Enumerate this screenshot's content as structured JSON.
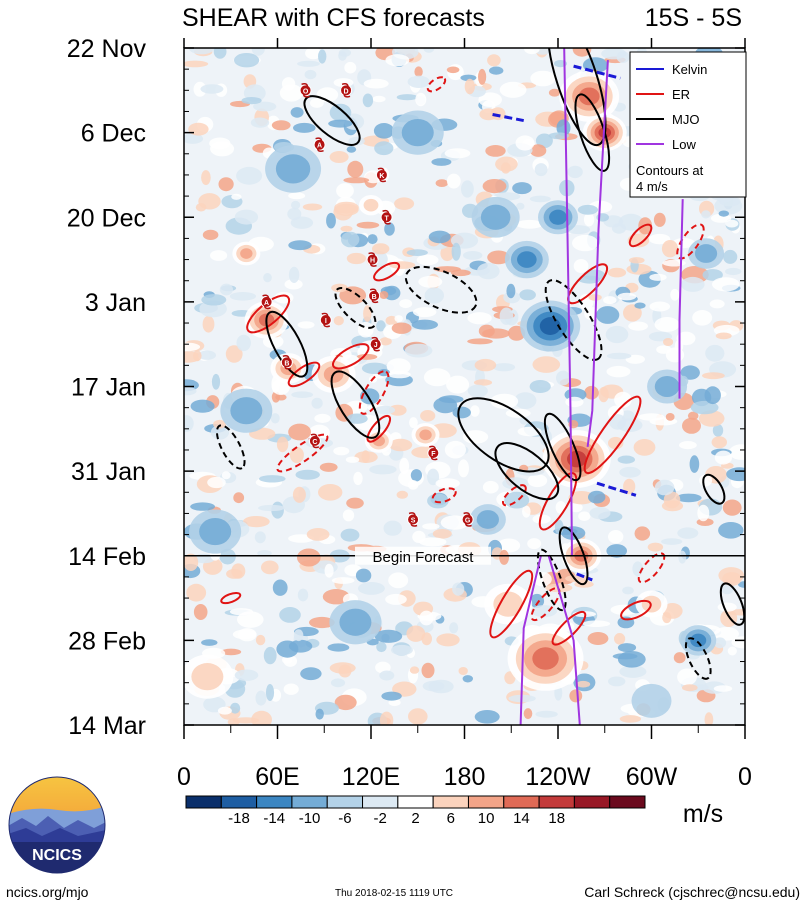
{
  "chart_data": {
    "type": "heatmap",
    "title_left": "SHEAR with CFS forecasts",
    "title_right": "15S - 5S",
    "x_ticks": [
      "0",
      "60E",
      "120E",
      "180",
      "120W",
      "60W",
      "0"
    ],
    "y_ticks": [
      "22 Nov",
      "6 Dec",
      "20 Dec",
      "3 Jan",
      "17 Jan",
      "31 Jan",
      "14 Feb",
      "28 Feb",
      "14 Mar"
    ],
    "xlim": [
      0,
      360
    ],
    "ylim_days": [
      0,
      112
    ],
    "forecast_start_day": 84,
    "forecast_label": "Begin Forecast",
    "legend": [
      {
        "name": "Kelvin",
        "color": "#1a1ad6"
      },
      {
        "name": "ER",
        "color": "#e01414"
      },
      {
        "name": "MJO",
        "color": "#000000"
      },
      {
        "name": "Low",
        "color": "#a035e0"
      }
    ],
    "contour_note_line1": "Contours at",
    "contour_note_line2": "4 m/s",
    "colorbar": {
      "ticks": [
        "-18",
        "-14",
        "-10",
        "-6",
        "-2",
        "2",
        "6",
        "10",
        "14",
        "18"
      ],
      "colors": [
        "#0a2f6b",
        "#1e5ea3",
        "#3b86c2",
        "#74acd6",
        "#b3d2e8",
        "#dce9f3",
        "#ffffff",
        "#fbd3bd",
        "#f3a488",
        "#e06a56",
        "#c33a3a",
        "#981826",
        "#6b0a1e"
      ],
      "units": "m/s"
    },
    "storms": [
      {
        "label": "O",
        "lon": 78,
        "day": 7
      },
      {
        "label": "D",
        "lon": 104,
        "day": 7
      },
      {
        "label": "A",
        "lon": 87,
        "day": 16
      },
      {
        "label": "K",
        "lon": 127,
        "day": 21
      },
      {
        "label": "T",
        "lon": 130,
        "day": 28
      },
      {
        "label": "H",
        "lon": 121,
        "day": 35
      },
      {
        "label": "B",
        "lon": 122,
        "day": 41
      },
      {
        "label": "A",
        "lon": 53,
        "day": 42
      },
      {
        "label": "I",
        "lon": 91,
        "day": 45
      },
      {
        "label": "J",
        "lon": 123,
        "day": 49
      },
      {
        "label": "B",
        "lon": 66,
        "day": 52
      },
      {
        "label": "C",
        "lon": 84,
        "day": 65
      },
      {
        "label": "F",
        "lon": 160,
        "day": 67
      },
      {
        "label": "S",
        "lon": 147,
        "day": 78
      },
      {
        "label": "G",
        "lon": 182,
        "day": 78
      }
    ],
    "mjo_contours": [
      {
        "lon": 95,
        "day": 12,
        "rx": 34,
        "ry": 14,
        "rot": 40,
        "style": "solid"
      },
      {
        "lon": 66,
        "day": 49,
        "rx": 36,
        "ry": 13,
        "rot": 62,
        "style": "solid"
      },
      {
        "lon": 110,
        "day": 59,
        "rx": 38,
        "ry": 15,
        "rot": 58,
        "style": "solid"
      },
      {
        "lon": 110,
        "day": 43,
        "rx": 26,
        "ry": 11,
        "rot": 45,
        "style": "dashed"
      },
      {
        "lon": 165,
        "day": 40,
        "rx": 38,
        "ry": 18,
        "rot": 25,
        "style": "dashed"
      },
      {
        "lon": 205,
        "day": 64,
        "rx": 52,
        "ry": 26,
        "rot": 35,
        "style": "solid"
      },
      {
        "lon": 220,
        "day": 70,
        "rx": 38,
        "ry": 18,
        "rot": 40,
        "style": "solid"
      },
      {
        "lon": 243,
        "day": 66,
        "rx": 36,
        "ry": 11,
        "rot": 66,
        "style": "solid"
      },
      {
        "lon": 252,
        "day": 5,
        "rx": 70,
        "ry": 20,
        "rot": 72,
        "style": "solid"
      },
      {
        "lon": 262,
        "day": 14,
        "rx": 40,
        "ry": 12,
        "rot": 72,
        "style": "solid"
      },
      {
        "lon": 250,
        "day": 45,
        "rx": 46,
        "ry": 16,
        "rot": 58,
        "style": "dashed"
      },
      {
        "lon": 250,
        "day": 84,
        "rx": 30,
        "ry": 10,
        "rot": 70,
        "style": "solid"
      },
      {
        "lon": 236,
        "day": 88,
        "rx": 32,
        "ry": 9,
        "rot": 70,
        "style": "dashed"
      },
      {
        "lon": 340,
        "day": 73,
        "rx": 16,
        "ry": 8,
        "rot": 60,
        "style": "solid"
      },
      {
        "lon": 330,
        "day": 101,
        "rx": 22,
        "ry": 9,
        "rot": 65,
        "style": "dashed"
      },
      {
        "lon": 30,
        "day": 66,
        "rx": 24,
        "ry": 9,
        "rot": 62,
        "style": "dashed"
      },
      {
        "lon": 352,
        "day": 92,
        "rx": 22,
        "ry": 9,
        "rot": 68,
        "style": "solid"
      }
    ],
    "er_contours": [
      {
        "lon": 54,
        "day": 44,
        "rx": 26,
        "ry": 10,
        "rot": -40,
        "style": "solid"
      },
      {
        "lon": 77,
        "day": 54,
        "rx": 18,
        "ry": 7,
        "rot": -35,
        "style": "solid"
      },
      {
        "lon": 107,
        "day": 51,
        "rx": 20,
        "ry": 8,
        "rot": -30,
        "style": "solid"
      },
      {
        "lon": 125,
        "day": 63,
        "rx": 16,
        "ry": 6,
        "rot": -50,
        "style": "solid"
      },
      {
        "lon": 122,
        "day": 57,
        "rx": 24,
        "ry": 9,
        "rot": -60,
        "style": "dashed"
      },
      {
        "lon": 76,
        "day": 67,
        "rx": 30,
        "ry": 8,
        "rot": -35,
        "style": "dashed"
      },
      {
        "lon": 167,
        "day": 74,
        "rx": 12,
        "ry": 6,
        "rot": -20,
        "style": "dashed"
      },
      {
        "lon": 162,
        "day": 6,
        "rx": 10,
        "ry": 5,
        "rot": -35,
        "style": "dashed"
      },
      {
        "lon": 130,
        "day": 37,
        "rx": 14,
        "ry": 6,
        "rot": -30,
        "style": "solid"
      },
      {
        "lon": 259,
        "day": 39,
        "rx": 26,
        "ry": 9,
        "rot": -45,
        "style": "solid"
      },
      {
        "lon": 293,
        "day": 31,
        "rx": 14,
        "ry": 6,
        "rot": -45,
        "style": "solid"
      },
      {
        "lon": 275,
        "day": 64,
        "rx": 46,
        "ry": 11,
        "rot": -55,
        "style": "solid"
      },
      {
        "lon": 240,
        "day": 75,
        "rx": 32,
        "ry": 10,
        "rot": -60,
        "style": "solid"
      },
      {
        "lon": 210,
        "day": 92,
        "rx": 38,
        "ry": 10,
        "rot": -60,
        "style": "solid"
      },
      {
        "lon": 247,
        "day": 96,
        "rx": 22,
        "ry": 7,
        "rot": -45,
        "style": "solid"
      },
      {
        "lon": 290,
        "day": 93,
        "rx": 16,
        "ry": 7,
        "rot": -25,
        "style": "solid"
      },
      {
        "lon": 325,
        "day": 32,
        "rx": 20,
        "ry": 8,
        "rot": -55,
        "style": "dashed"
      },
      {
        "lon": 300,
        "day": 86,
        "rx": 18,
        "ry": 7,
        "rot": -50,
        "style": "dashed"
      },
      {
        "lon": 232,
        "day": 92,
        "rx": 20,
        "ry": 7,
        "rot": -50,
        "style": "dashed"
      },
      {
        "lon": 30,
        "day": 91,
        "rx": 10,
        "ry": 4,
        "rot": -20,
        "style": "solid"
      },
      {
        "lon": 212,
        "day": 74,
        "rx": 14,
        "ry": 6,
        "rot": -40,
        "style": "dashed"
      }
    ],
    "kelvin_segments": [
      {
        "lon1": 250,
        "day1": 3,
        "lon2": 280,
        "day2": 5
      },
      {
        "lon1": 265,
        "day1": 72,
        "lon2": 290,
        "day2": 74
      },
      {
        "lon1": 252,
        "day1": 87,
        "lon2": 262,
        "day2": 88
      },
      {
        "lon1": 198,
        "day1": 11,
        "lon2": 218,
        "day2": 12
      }
    ],
    "low_contours": [
      {
        "points": [
          [
            244,
            0
          ],
          [
            246,
            30
          ],
          [
            248,
            60
          ],
          [
            249,
            84
          ]
        ]
      },
      {
        "points": [
          [
            272,
            2
          ],
          [
            266,
            30
          ],
          [
            262,
            60
          ],
          [
            259,
            66
          ]
        ]
      },
      {
        "points": [
          [
            320,
            25
          ],
          [
            318,
            45
          ],
          [
            318,
            58
          ]
        ]
      },
      {
        "points": [
          [
            229,
            84
          ],
          [
            218,
            96
          ],
          [
            216,
            112
          ]
        ]
      },
      {
        "points": [
          [
            234,
            84
          ],
          [
            250,
            98
          ],
          [
            254,
            112
          ]
        ]
      }
    ],
    "anomaly_blobs": [
      {
        "lon": 260,
        "day": 8,
        "r": 30,
        "val": 16
      },
      {
        "lon": 270,
        "day": 14,
        "r": 22,
        "val": 20
      },
      {
        "lon": 252,
        "day": 68,
        "r": 34,
        "val": 20
      },
      {
        "lon": 255,
        "day": 84,
        "r": 20,
        "val": 16
      },
      {
        "lon": 232,
        "day": 101,
        "r": 38,
        "val": 14
      },
      {
        "lon": 53,
        "day": 45,
        "r": 22,
        "val": 16
      },
      {
        "lon": 67,
        "day": 53,
        "r": 18,
        "val": 12
      },
      {
        "lon": 96,
        "day": 54,
        "r": 22,
        "val": 12
      },
      {
        "lon": 40,
        "day": 34,
        "r": 14,
        "val": 10
      },
      {
        "lon": 125,
        "day": 65,
        "r": 14,
        "val": 12
      },
      {
        "lon": 155,
        "day": 64,
        "r": 14,
        "val": 10
      },
      {
        "lon": 208,
        "day": 92,
        "r": 24,
        "val": 8
      },
      {
        "lon": 15,
        "day": 104,
        "r": 26,
        "val": 6
      },
      {
        "lon": 120,
        "day": 26,
        "r": 12,
        "val": 8
      },
      {
        "lon": 300,
        "day": 92,
        "r": 16,
        "val": 6
      },
      {
        "lon": 235,
        "day": 46,
        "r": 30,
        "val": -16
      },
      {
        "lon": 220,
        "day": 35,
        "r": 22,
        "val": -10
      },
      {
        "lon": 200,
        "day": 28,
        "r": 24,
        "val": -8
      },
      {
        "lon": 240,
        "day": 28,
        "r": 20,
        "val": -12
      },
      {
        "lon": 40,
        "day": 60,
        "r": 26,
        "val": -8
      },
      {
        "lon": 20,
        "day": 80,
        "r": 26,
        "val": -8
      },
      {
        "lon": 330,
        "day": 98,
        "r": 18,
        "val": -12
      },
      {
        "lon": 70,
        "day": 20,
        "r": 28,
        "val": -6
      },
      {
        "lon": 150,
        "day": 14,
        "r": 26,
        "val": -6
      },
      {
        "lon": 310,
        "day": 56,
        "r": 20,
        "val": -8
      },
      {
        "lon": 335,
        "day": 34,
        "r": 18,
        "val": -8
      },
      {
        "lon": 195,
        "day": 78,
        "r": 18,
        "val": -8
      },
      {
        "lon": 110,
        "day": 95,
        "r": 26,
        "val": -6
      },
      {
        "lon": 300,
        "day": 108,
        "r": 20,
        "val": -4
      }
    ]
  },
  "logo_text": "NCICS",
  "footer": {
    "left": "ncics.org/mjo",
    "center": "Thu 2018-02-15 1119 UTC",
    "right": "Carl Schreck (cjschrec@ncsu.edu)"
  }
}
